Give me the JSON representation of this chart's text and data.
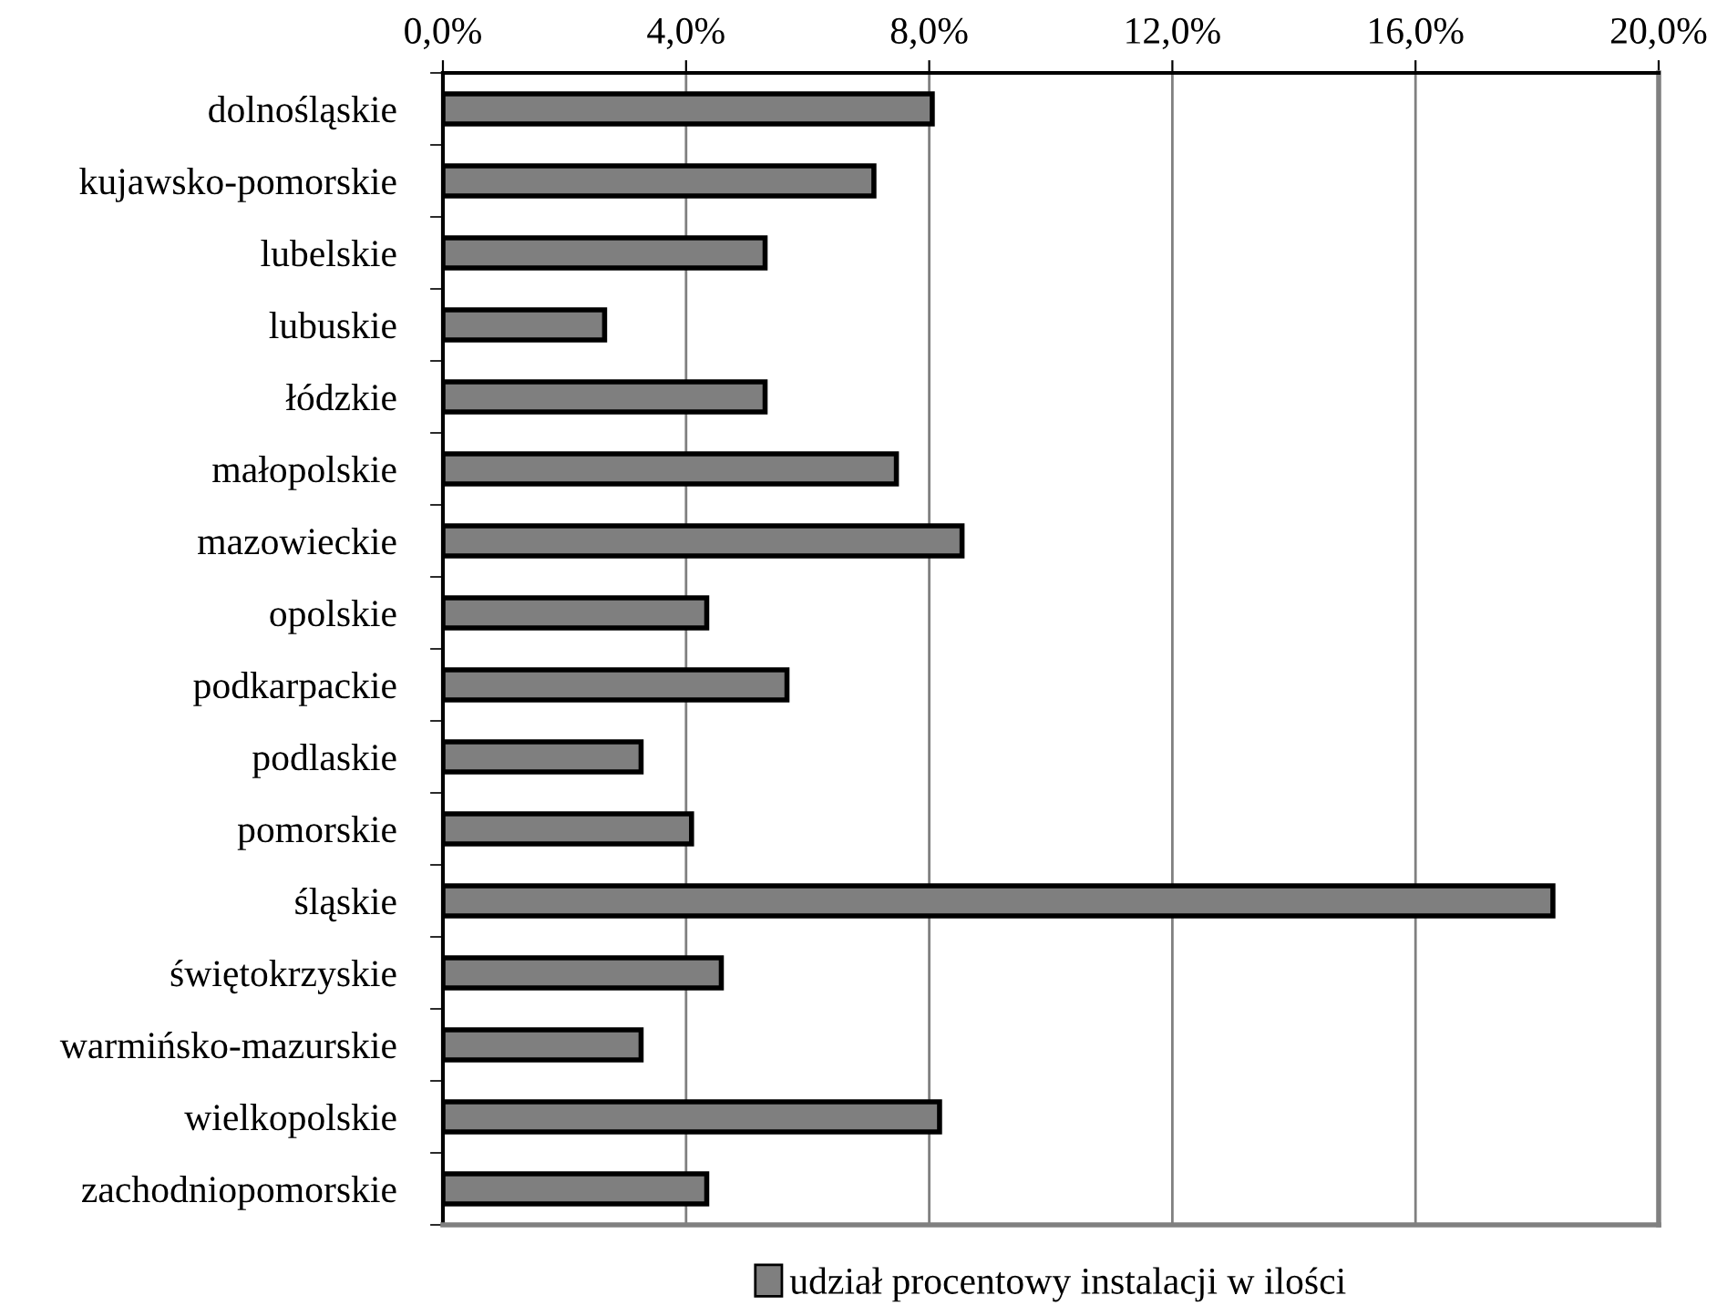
{
  "chart_data": {
    "type": "bar",
    "orientation": "horizontal",
    "categories": [
      "dolnośląskie",
      "kujawsko-pomorskie",
      "lubelskie",
      "lubuskie",
      "łódzkie",
      "małopolskie",
      "mazowieckie",
      "opolskie",
      "podkarpackie",
      "podlaskie",
      "pomorskie",
      "śląskie",
      "świętokrzyskie",
      "warmińsko-mazurskie",
      "wielkopolskie",
      "zachodniopomorskie"
    ],
    "series": [
      {
        "name": "udział procentowy instalacji w ilości",
        "color": "#7f7f7f",
        "values": [
          8.05,
          7.09,
          5.3,
          2.66,
          5.3,
          7.46,
          8.54,
          4.34,
          5.66,
          3.26,
          4.09,
          18.26,
          4.58,
          3.26,
          8.17,
          4.34
        ]
      }
    ],
    "xlim": [
      0,
      20
    ],
    "xticks": [
      {
        "value": 0,
        "label": "0,0%"
      },
      {
        "value": 4,
        "label": "4,0%"
      },
      {
        "value": 8,
        "label": "8,0%"
      },
      {
        "value": 12,
        "label": "12,0%"
      },
      {
        "value": 16,
        "label": "16,0%"
      },
      {
        "value": 20,
        "label": "20,0%"
      }
    ],
    "grid": "x",
    "legend": "bottom"
  }
}
